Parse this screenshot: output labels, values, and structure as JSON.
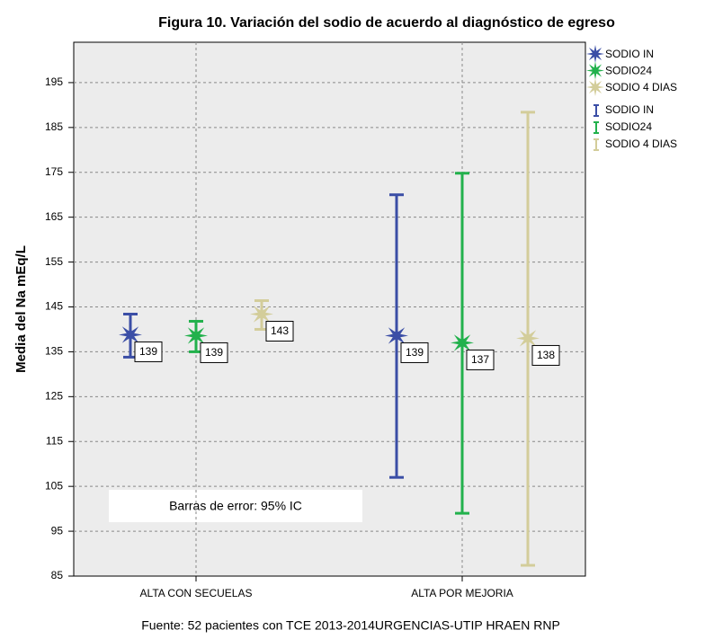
{
  "chart_data": {
    "type": "errorbar",
    "title": "Figura 10. Variación del sodio de acuerdo al diagnóstico de egreso",
    "ylabel": "Media del Na mEq/L",
    "categories": [
      "ALTA CON SECUELAS",
      "ALTA POR MEJORIA"
    ],
    "series": [
      {
        "name": "SODIO IN",
        "color": "#3b4ea6",
        "values": [
          138.8,
          138.6
        ],
        "value_labels": [
          "139",
          "139"
        ],
        "lower": [
          133.8,
          107
        ],
        "upper": [
          143.4,
          170
        ]
      },
      {
        "name": "SODIO24",
        "color": "#22b14c",
        "values": [
          138.6,
          137.0
        ],
        "value_labels": [
          "139",
          "137"
        ],
        "lower": [
          135,
          99
        ],
        "upper": [
          141.8,
          174.8
        ]
      },
      {
        "name": "SODIO 4 DIAS",
        "color": "#d3cd9a",
        "values": [
          143.4,
          138.0
        ],
        "value_labels": [
          "143",
          "138"
        ],
        "lower": [
          140,
          87.4
        ],
        "upper": [
          146.4,
          188.4
        ]
      }
    ],
    "ylim": [
      85,
      204
    ],
    "yticks": [
      85,
      95,
      105,
      115,
      125,
      135,
      145,
      155,
      165,
      175,
      185,
      195
    ],
    "grid": true,
    "annotation": "Barras de error: 95% IC",
    "footnote": "Fuente: 52 pacientes con TCE 2013-2014URGENCIAS-UTIP HRAEN RNP"
  }
}
